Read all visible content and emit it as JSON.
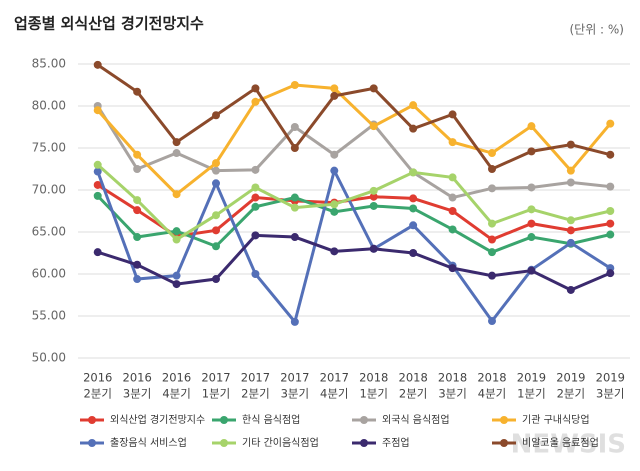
{
  "chart_data": {
    "type": "line",
    "title": "업종별 외식산업 경기전망지수",
    "subtitle": "(단위 : %)",
    "watermark": "NEWSIS",
    "categories": [
      [
        "2016",
        "2분기"
      ],
      [
        "2016",
        "3분기"
      ],
      [
        "2016",
        "4분기"
      ],
      [
        "2017",
        "1분기"
      ],
      [
        "2017",
        "2분기"
      ],
      [
        "2017",
        "3분기"
      ],
      [
        "2017",
        "4분기"
      ],
      [
        "2018",
        "1분기"
      ],
      [
        "2018",
        "2분기"
      ],
      [
        "2018",
        "3분기"
      ],
      [
        "2018",
        "4분기"
      ],
      [
        "2019",
        "1분기"
      ],
      [
        "2019",
        "2분기"
      ],
      [
        "2019",
        "3분기"
      ]
    ],
    "ylim": [
      50,
      85
    ],
    "yticks": [
      {
        "value": 50,
        "label": "50.00"
      },
      {
        "value": 55,
        "label": "55.00"
      },
      {
        "value": 60,
        "label": "60.00"
      },
      {
        "value": 65,
        "label": "65.00"
      },
      {
        "value": 70,
        "label": "70.00"
      },
      {
        "value": 75,
        "label": "75.00"
      },
      {
        "value": 80,
        "label": "80.00"
      },
      {
        "value": 85,
        "label": "85.00"
      }
    ],
    "grid": true,
    "legend": "bottom",
    "series": [
      {
        "name": "외식산업 경기전망지수",
        "color": "#e03c31",
        "values": [
          70.6,
          67.6,
          64.5,
          65.2,
          69.1,
          68.7,
          68.5,
          69.2,
          69.0,
          67.5,
          64.1,
          66.0,
          65.2,
          66.0
        ]
      },
      {
        "name": "한식 음식점업",
        "color": "#3aa56e",
        "values": [
          69.3,
          64.4,
          65.1,
          63.3,
          68.0,
          69.1,
          67.4,
          68.1,
          67.8,
          65.3,
          62.6,
          64.4,
          63.6,
          64.7
        ]
      },
      {
        "name": "외국식 음식점업",
        "color": "#a8a3a0",
        "values": [
          80.0,
          72.5,
          74.4,
          72.3,
          72.4,
          77.5,
          74.2,
          77.8,
          72.1,
          69.1,
          70.2,
          70.3,
          70.9,
          70.4
        ]
      },
      {
        "name": "기관 구내식당업",
        "color": "#f7b22e",
        "values": [
          79.5,
          74.2,
          69.5,
          73.2,
          80.5,
          82.5,
          82.1,
          77.6,
          80.1,
          75.7,
          74.4,
          77.6,
          72.3,
          77.9
        ]
      },
      {
        "name": "출장음식 서비스업",
        "color": "#5470b8",
        "values": [
          72.2,
          59.4,
          59.8,
          70.8,
          60.0,
          54.3,
          72.3,
          63.0,
          65.8,
          61.0,
          54.4,
          60.5,
          63.7,
          60.7
        ]
      },
      {
        "name": "기타 간이음식점업",
        "color": "#a6d36a",
        "values": [
          73.0,
          68.8,
          64.1,
          67.0,
          70.3,
          67.9,
          68.3,
          69.9,
          72.1,
          71.5,
          66.0,
          67.7,
          66.4,
          67.5
        ]
      },
      {
        "name": "주점업",
        "color": "#3b2a6e",
        "values": [
          62.6,
          61.1,
          58.8,
          59.4,
          64.6,
          64.4,
          62.7,
          63.0,
          62.5,
          60.7,
          59.8,
          60.4,
          58.1,
          60.1
        ]
      },
      {
        "name": "비알코올 음료점업",
        "color": "#8b4a2b",
        "values": [
          84.9,
          81.7,
          75.7,
          78.9,
          82.1,
          75.0,
          81.2,
          82.1,
          77.3,
          79.0,
          72.5,
          74.6,
          75.4,
          74.2
        ]
      }
    ]
  }
}
